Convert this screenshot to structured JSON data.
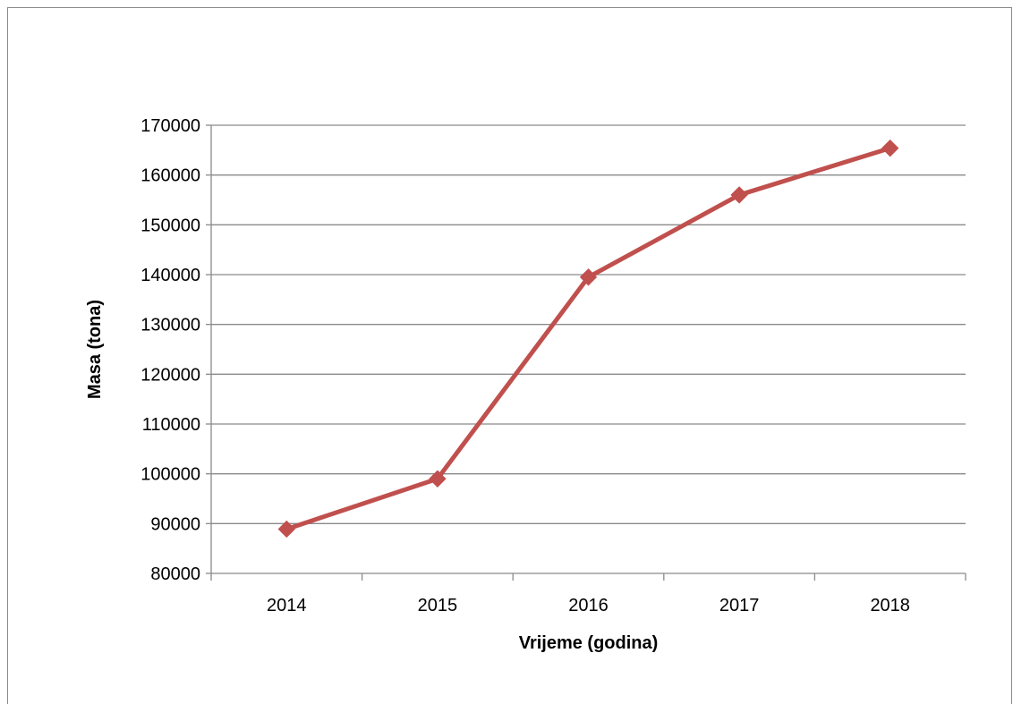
{
  "chart_data": {
    "type": "line",
    "title": "",
    "xlabel": "Vrijeme (godina)",
    "ylabel": "Masa (tona)",
    "categories": [
      "2014",
      "2015",
      "2016",
      "2017",
      "2018"
    ],
    "y_ticks": [
      "80000",
      "90000",
      "100000",
      "110000",
      "120000",
      "130000",
      "140000",
      "150000",
      "160000",
      "170000"
    ],
    "ylim": [
      80000,
      170000
    ],
    "ystep": 10000,
    "grid": true,
    "legend": "none",
    "series": [
      {
        "values": [
          88900,
          99000,
          139500,
          156000,
          165400
        ],
        "color": "#c0504d",
        "marker": "diamond"
      }
    ],
    "colors": {
      "gridline": "#8a8a8a",
      "axis": "#8a8a8a",
      "frame": "#8a8a8a"
    }
  }
}
